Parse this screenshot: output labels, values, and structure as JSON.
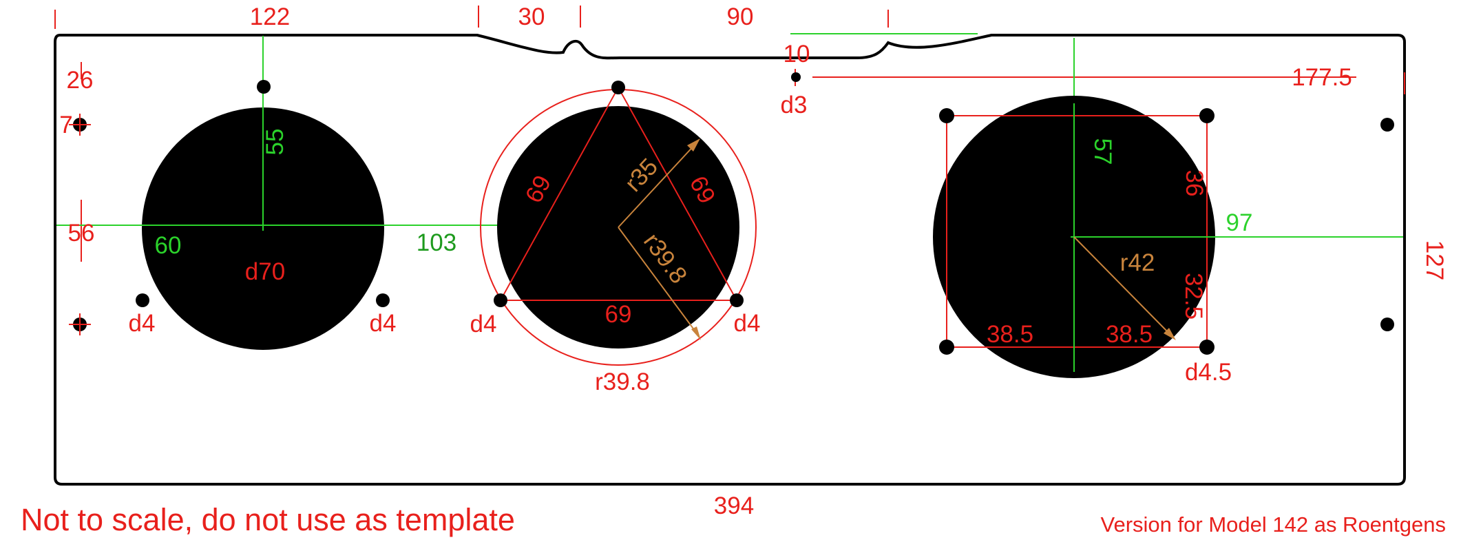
{
  "panel": {
    "overall_width": "394",
    "overall_height": "127",
    "top_left_width": "122",
    "notch1_width": "30",
    "span_between_notches": "90",
    "notch2_depth": "10",
    "right_hole_offset": "177.5",
    "left_hole_top_offset": "26",
    "left_hole_edge_offset": "7",
    "left_center_height": "56"
  },
  "gauge_left": {
    "diameter": "d70",
    "vertical_offset": "55",
    "horizontal_label": "60",
    "hole_left": "d4",
    "hole_right": "d4"
  },
  "gauge_center": {
    "center_spacing": "103",
    "triangle_left": "69",
    "triangle_right": "69",
    "triangle_bottom": "69",
    "radius_inner": "r35",
    "radius_bolt": "r39.8",
    "outer_ring": "r39.8",
    "hole_left": "d4",
    "hole_right": "d4"
  },
  "small_hole": {
    "diameter": "d3"
  },
  "gauge_right": {
    "vertical_offset": "57",
    "horizontal_offset": "97",
    "square_upper": "36",
    "square_lower": "32.5",
    "half_left": "38.5",
    "half_right": "38.5",
    "radius": "r42",
    "hole": "d4.5"
  },
  "notes": {
    "warning": "Not to scale, do not use as template",
    "version": "Version for Model 142 as Roentgens"
  },
  "colors": {
    "outline": "#000000",
    "dimension": "#e8201c",
    "centerline": "#2bd22b",
    "radius": "#c9843c"
  }
}
